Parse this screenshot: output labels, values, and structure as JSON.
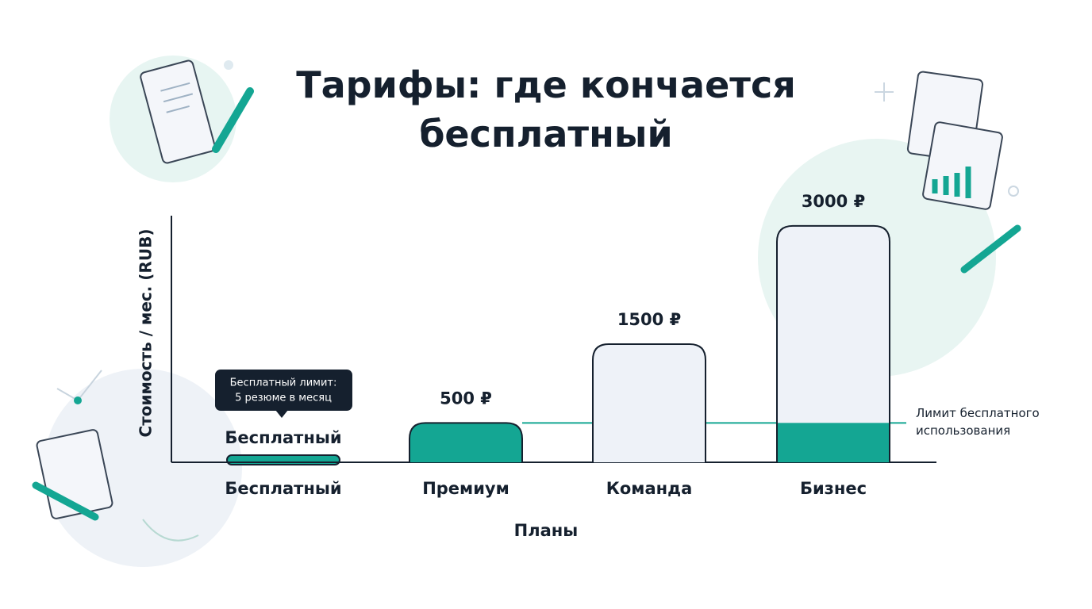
{
  "chart_data": {
    "type": "bar",
    "title": "Тарифы: где кончается бесплатный",
    "x_label": "Планы",
    "y_label": "Стоимость / мес. (RUB)",
    "categories": [
      "Бесплатный",
      "Премиум",
      "Команда",
      "Бизнес"
    ],
    "values": [
      0,
      500,
      1500,
      3000
    ],
    "value_labels": [
      "Бесплатный",
      "500 ₽",
      "1500 ₽",
      "3000 ₽"
    ],
    "colors": [
      "#14a693",
      "#14a693",
      "#eef2f8",
      "#eef2f8"
    ],
    "ylim": [
      0,
      3130
    ],
    "limit": {
      "value": 500,
      "label_lines": [
        "Лимит бесплатного",
        "использования"
      ],
      "color": "#14a693"
    },
    "limit_fill": [
      false,
      false,
      false,
      true
    ],
    "annotation_lines": [
      "Бесплатный лимит:",
      "5 резюме в месяц"
    ]
  }
}
